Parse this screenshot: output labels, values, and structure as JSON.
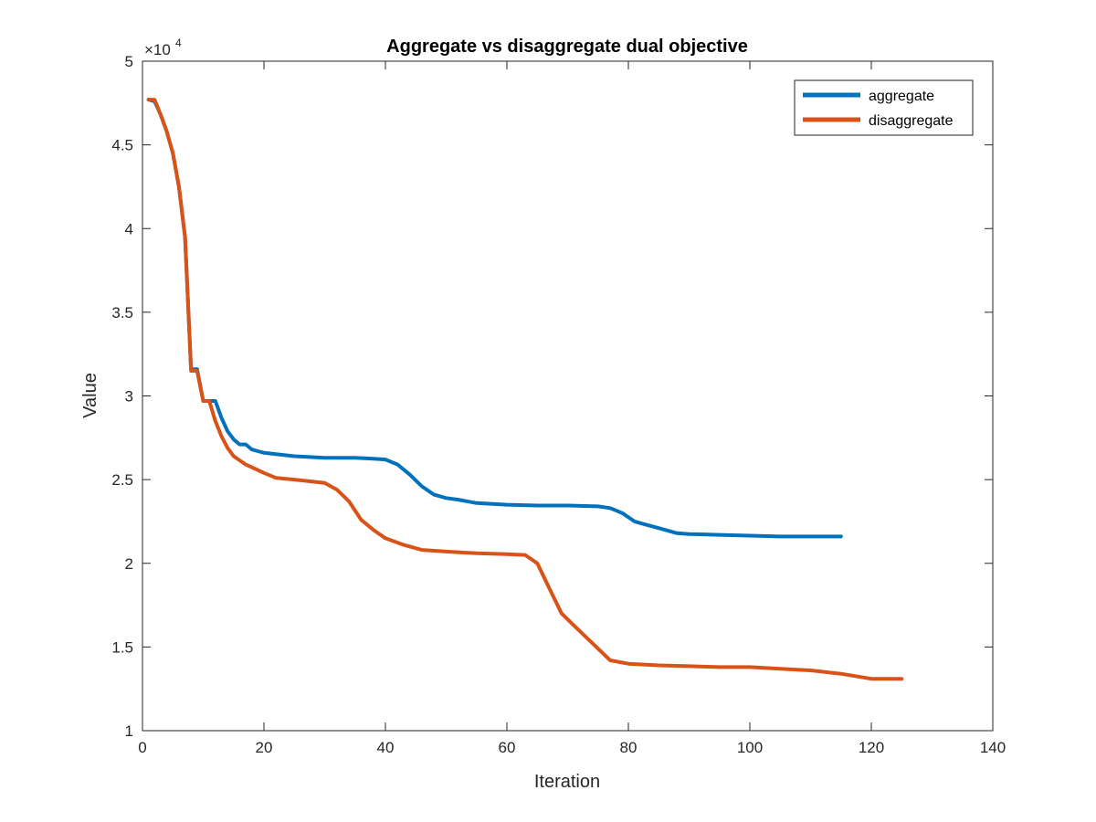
{
  "chart_data": {
    "type": "line",
    "title": "Aggregate vs disaggregate dual objective",
    "xlabel": "Iteration",
    "ylabel": "Value",
    "y_exponent_label": "×10",
    "y_exponent": "4",
    "xlim": [
      0,
      140
    ],
    "ylim": [
      10000,
      50000
    ],
    "x_ticks": [
      0,
      20,
      40,
      60,
      80,
      100,
      120,
      140
    ],
    "y_ticks": [
      10000,
      15000,
      20000,
      25000,
      30000,
      35000,
      40000,
      45000,
      50000
    ],
    "x_tick_labels": [
      "0",
      "20",
      "40",
      "60",
      "80",
      "100",
      "120",
      "140"
    ],
    "y_tick_labels": [
      "1",
      "1.5",
      "2",
      "2.5",
      "3",
      "3.5",
      "4",
      "4.5",
      "5"
    ],
    "grid": false,
    "legend_position": "top-right",
    "series": [
      {
        "name": "aggregate",
        "color": "#0072BD",
        "x": [
          1,
          2,
          3,
          4,
          5,
          6,
          7,
          8,
          9,
          10,
          11,
          12,
          13,
          14,
          15,
          16,
          17,
          18,
          19,
          20,
          25,
          30,
          35,
          38,
          40,
          42,
          44,
          46,
          48,
          50,
          52,
          55,
          60,
          65,
          70,
          75,
          77,
          79,
          81,
          82,
          84,
          86,
          88,
          90,
          95,
          100,
          105,
          110,
          115
        ],
        "y": [
          47700,
          47600,
          46800,
          45800,
          44500,
          42500,
          39500,
          31600,
          31600,
          29700,
          29700,
          29700,
          28700,
          27900,
          27400,
          27100,
          27100,
          26800,
          26700,
          26600,
          26400,
          26300,
          26300,
          26250,
          26200,
          25900,
          25300,
          24600,
          24100,
          23900,
          23800,
          23600,
          23500,
          23450,
          23450,
          23400,
          23300,
          23000,
          22500,
          22400,
          22200,
          22000,
          21800,
          21750,
          21700,
          21650,
          21600,
          21600,
          21600
        ]
      },
      {
        "name": "disaggregate",
        "color": "#D95319",
        "x": [
          1,
          2,
          3,
          4,
          5,
          6,
          7,
          8,
          9,
          10,
          11,
          12,
          13,
          14,
          15,
          17,
          20,
          22,
          25,
          30,
          32,
          34,
          36,
          38,
          40,
          43,
          46,
          50,
          55,
          60,
          63,
          65,
          67,
          69,
          71,
          73,
          75,
          77,
          80,
          85,
          90,
          95,
          100,
          105,
          110,
          115,
          120,
          125
        ],
        "y": [
          47700,
          47700,
          46800,
          45800,
          44500,
          42500,
          39500,
          31500,
          31500,
          29700,
          29700,
          28500,
          27600,
          26900,
          26400,
          25900,
          25400,
          25100,
          25000,
          24800,
          24400,
          23700,
          22600,
          22000,
          21500,
          21100,
          20800,
          20700,
          20600,
          20550,
          20500,
          20000,
          18500,
          17000,
          16300,
          15600,
          14900,
          14200,
          14000,
          13900,
          13850,
          13800,
          13800,
          13700,
          13600,
          13400,
          13100,
          13100
        ]
      }
    ]
  }
}
